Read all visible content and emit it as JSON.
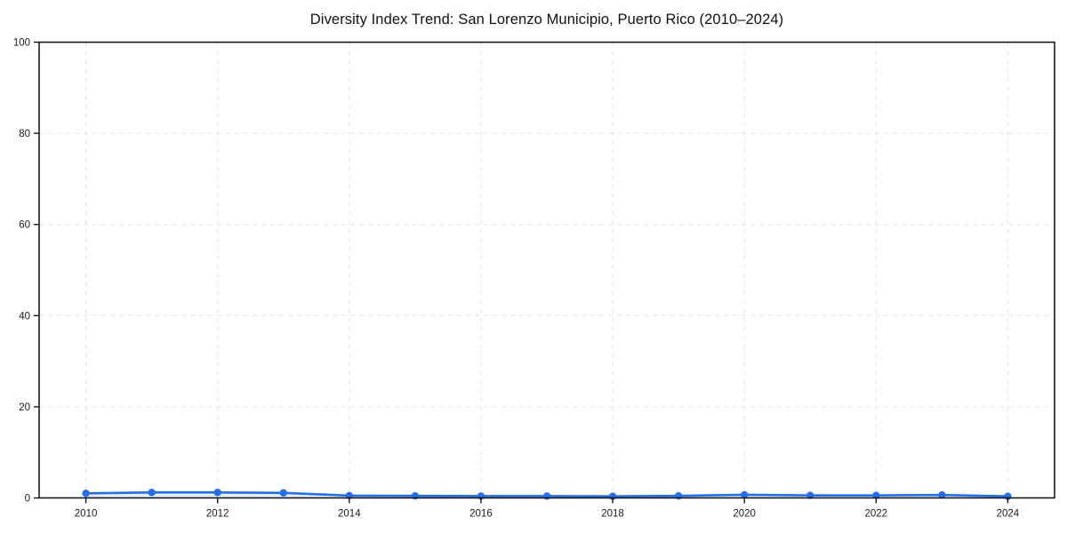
{
  "chart_data": {
    "type": "line",
    "title": "Diversity Index Trend: San Lorenzo Municipio, Puerto Rico (2010–2024)",
    "x": [
      2010,
      2011,
      2012,
      2013,
      2014,
      2015,
      2016,
      2017,
      2018,
      2019,
      2020,
      2021,
      2022,
      2023,
      2024
    ],
    "series": [
      {
        "name": "Diversity Index",
        "values": [
          1.0,
          1.2,
          1.2,
          1.1,
          0.5,
          0.45,
          0.4,
          0.4,
          0.35,
          0.45,
          0.7,
          0.55,
          0.55,
          0.65,
          0.35
        ]
      }
    ],
    "xlabel": "",
    "ylabel": "",
    "xlim": [
      2009.29,
      2024.71
    ],
    "ylim": [
      0,
      100
    ],
    "xticks": [
      2010,
      2012,
      2014,
      2016,
      2018,
      2020,
      2022,
      2024
    ],
    "yticks": [
      0,
      20,
      40,
      60,
      80,
      100
    ],
    "grid": "dashed",
    "legend": "none",
    "colors": {
      "line": "#2570e8",
      "marker": "#2570e8",
      "area_fill": "rgba(37,112,232,0.12)",
      "gridline": "#e2e2e2",
      "frame": "#1a1a1a",
      "text": "#1a1a1a"
    }
  }
}
